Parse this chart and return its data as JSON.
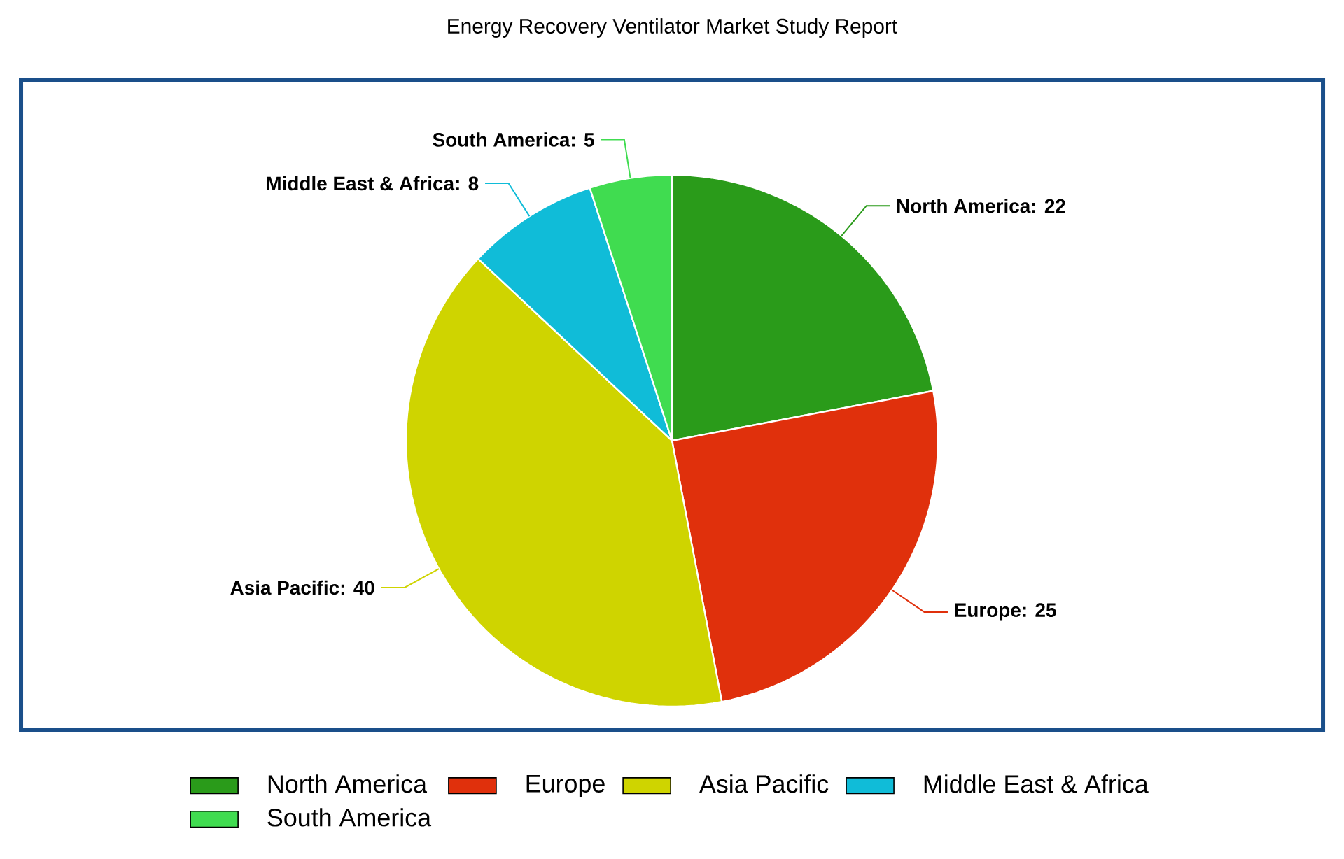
{
  "chart_data": {
    "type": "pie",
    "title": "Energy Recovery Ventilator Market Study Report",
    "categories": [
      "North America",
      "Europe",
      "Asia Pacific",
      "Middle East & Africa",
      "South America"
    ],
    "values": [
      22,
      25,
      40,
      8,
      5
    ],
    "colors": [
      "#2a9b1a",
      "#e0300c",
      "#cfd400",
      "#10bcd8",
      "#40dc50"
    ],
    "value_labels": [
      "North America: 22",
      "Europe: 25",
      "Asia Pacific: 40",
      "Middle East & Africa: 8",
      "South America: 5"
    ],
    "legend": "bottom"
  }
}
